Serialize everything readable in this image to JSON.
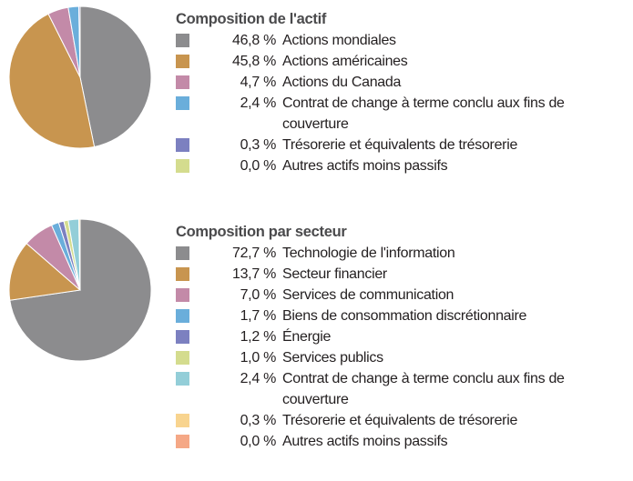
{
  "chart_data": [
    {
      "type": "pie",
      "title": "Composition de l'actif",
      "categories": [
        "Actions mondiales",
        "Actions américaines",
        "Actions du Canada",
        "Contrat de change à terme conclu aux fins de couverture",
        "Trésorerie et équivalents de trésorerie",
        "Autres actifs moins passifs"
      ],
      "values": [
        46.8,
        45.8,
        4.7,
        2.4,
        0.3,
        0.0
      ],
      "value_labels": [
        "46,8 %",
        "45,8 %",
        "4,7 %",
        "2,4 %",
        "0,3 %",
        "0,0 %"
      ],
      "colors": [
        "#8c8c8e",
        "#c8954f",
        "#c38aa8",
        "#6aaedb",
        "#7c80c0",
        "#d4dc8e"
      ]
    },
    {
      "type": "pie",
      "title": "Composition par secteur",
      "categories": [
        "Technologie de l'information",
        "Secteur financier",
        "Services de communication",
        "Biens de consommation discrétionnaire",
        "Énergie",
        "Services publics",
        "Contrat de change à terme conclu aux fins de couverture",
        "Trésorerie et équivalents de trésorerie",
        "Autres actifs moins passifs"
      ],
      "values": [
        72.7,
        13.7,
        7.0,
        1.7,
        1.2,
        1.0,
        2.4,
        0.3,
        0.0
      ],
      "value_labels": [
        "72,7 %",
        "13,7 %",
        "7,0 %",
        "1,7 %",
        "1,2 %",
        "1,0 %",
        "2,4 %",
        "0,3 %",
        "0,0 %"
      ],
      "colors": [
        "#8c8c8e",
        "#c8954f",
        "#c38aa8",
        "#6aaedb",
        "#7c80c0",
        "#d4dc8e",
        "#93ced8",
        "#f8d48f",
        "#f5a886"
      ]
    }
  ]
}
